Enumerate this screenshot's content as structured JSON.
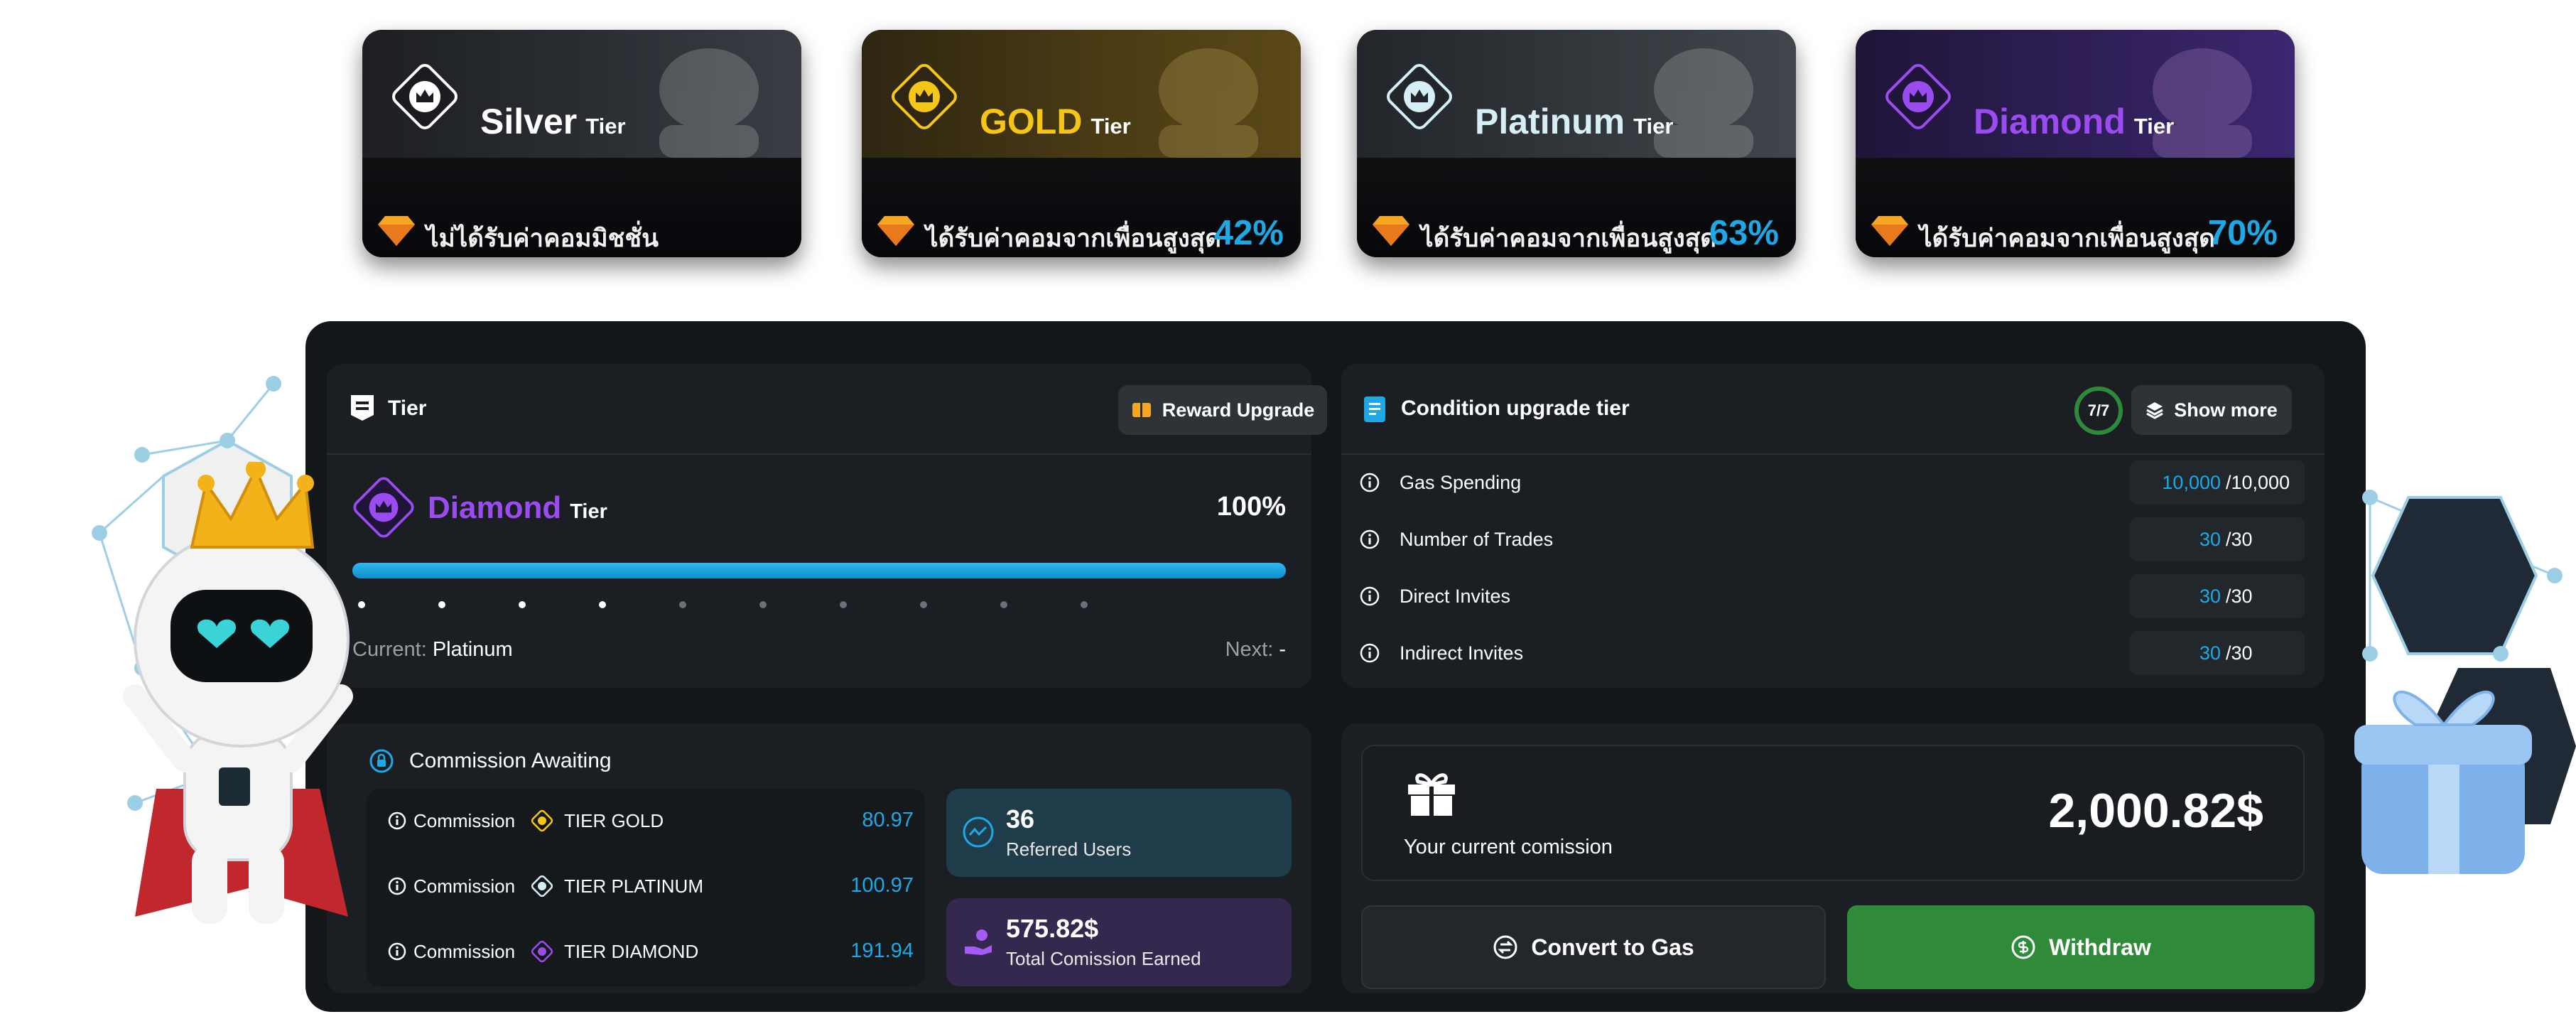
{
  "tiers": [
    {
      "key": "silver",
      "name": "Silver",
      "tier_word": "Tier",
      "name_color": "#ffffff",
      "desc": "ไม่ได้รับค่าคอมมิชชั่น",
      "pct": ""
    },
    {
      "key": "gold",
      "name": "GOLD",
      "tier_word": "Tier",
      "name_color": "#f5c518",
      "desc": "ได้รับค่าคอมจากเพื่อนสูงสุด",
      "pct": "42%"
    },
    {
      "key": "platinum",
      "name": "Platinum",
      "tier_word": "Tier",
      "name_color": "#d6eef6",
      "desc": "ได้รับค่าคอมจากเพื่อนสูงสุด",
      "pct": "63%"
    },
    {
      "key": "diamond",
      "name": "Diamond",
      "tier_word": "Tier",
      "name_color": "#9a4cf0",
      "desc": "ได้รับค่าคอมจากเพื่อนสูงสุด",
      "pct": "70%"
    }
  ],
  "tier_panel": {
    "title": "Tier",
    "reward_button": "Reward Upgrade",
    "current_tier_name": "Diamond",
    "current_tier_word": "Tier",
    "progress_label": "100%",
    "progress_fraction": 1.0,
    "current_label": "Current:",
    "current_value": "Platinum",
    "next_label": "Next:",
    "next_value": "-"
  },
  "condition_panel": {
    "title": "Condition upgrade tier",
    "progress_badge": "7/7",
    "show_more": "Show more",
    "rows": [
      {
        "label": "Gas Spending",
        "current": "10,000",
        "total": "/10,000"
      },
      {
        "label": "Number of Trades",
        "current": "30",
        "total": "/30"
      },
      {
        "label": "Direct Invites",
        "current": "30",
        "total": "/30"
      },
      {
        "label": "Indirect Invites",
        "current": "30",
        "total": "/30"
      }
    ]
  },
  "commission_panel": {
    "title": "Commission Awaiting",
    "rows": [
      {
        "label": "Commission",
        "tier": "TIER GOLD",
        "amount": "80.97"
      },
      {
        "label": "Commission",
        "tier": "TIER PLATINUM",
        "amount": "100.97"
      },
      {
        "label": "Commission",
        "tier": "TIER DIAMOND",
        "amount": "191.94"
      }
    ],
    "referred": {
      "value": "36",
      "label": "Referred Users"
    },
    "earned": {
      "value": "575.82$",
      "label": "Total Comission Earned"
    }
  },
  "wallet_panel": {
    "label": "Your current comission",
    "amount": "2,000.82$",
    "convert_button": "Convert to Gas",
    "withdraw_button": "Withdraw"
  },
  "colors": {
    "accent_blue": "#1ea9e6",
    "gold": "#f5c518",
    "diamond_purple": "#9a4cf0",
    "withdraw_green": "#2f8a3a"
  }
}
